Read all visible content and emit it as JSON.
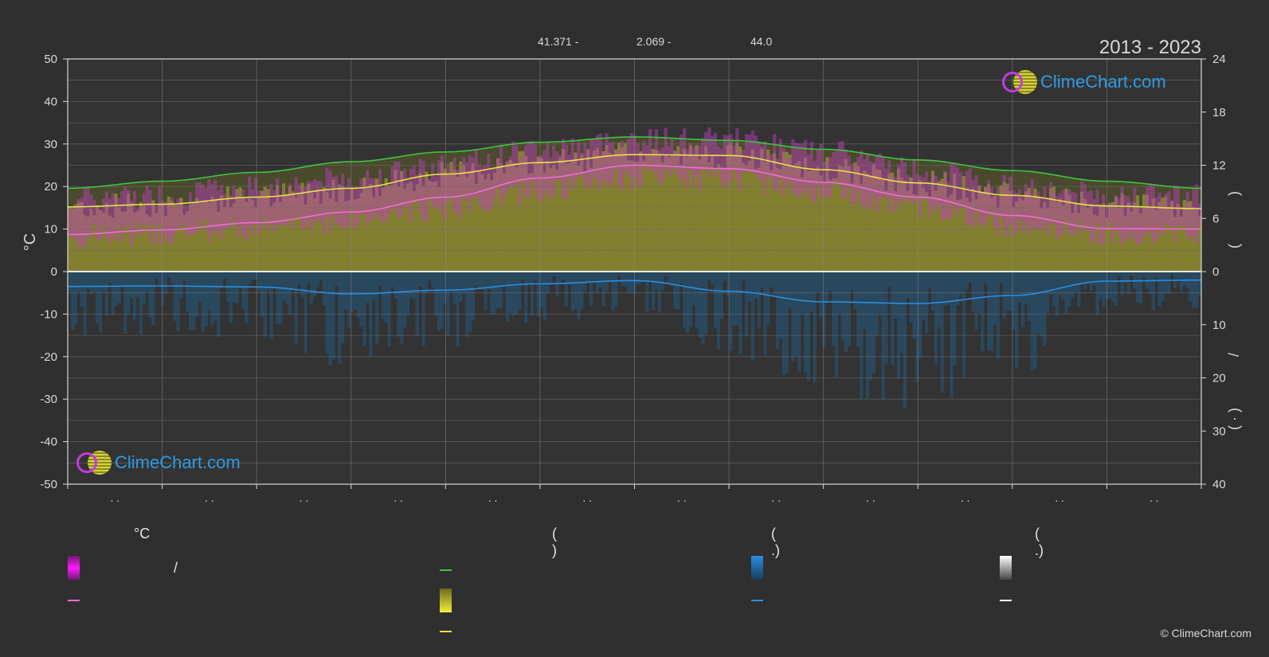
{
  "header": {
    "period": "2013 - 2023",
    "top_values": [
      "41.371 -",
      "2.069 -",
      "44.0"
    ]
  },
  "logo": {
    "text": "ClimeChart.com"
  },
  "copyright": "© ClimeChart.com",
  "chart_data": {
    "type": "line",
    "y_left": {
      "label": "°C",
      "range": [
        -50,
        50
      ],
      "ticks": [
        "50",
        "40",
        "30",
        "20",
        "10",
        "0",
        "-10",
        "-20",
        "-30",
        "-40",
        "-50"
      ]
    },
    "y_right_upper": {
      "range": [
        0,
        24
      ],
      "ticks": [
        "24",
        "18",
        "12",
        "6",
        "0"
      ],
      "label_fragments": [
        "(",
        ")"
      ]
    },
    "y_right_lower": {
      "range": [
        0,
        40
      ],
      "ticks": [
        "10",
        "20",
        "30",
        "40"
      ],
      "label_fragments": [
        "/",
        "( · )"
      ]
    },
    "x_tick_labels": [
      ". .",
      ". .",
      ". .",
      ". .",
      ". .",
      ". .",
      ". .",
      ". .",
      ". .",
      ". .",
      ". .",
      ". ."
    ],
    "grid": true,
    "series": [
      {
        "key": "daylight",
        "color": "#3ec43e",
        "axis": "right_upper",
        "points": [
          [
            0,
            9.4
          ],
          [
            1,
            10.2
          ],
          [
            2,
            11.2
          ],
          [
            3,
            12.4
          ],
          [
            4,
            13.5
          ],
          [
            5,
            14.6
          ],
          [
            6,
            15.2
          ],
          [
            7,
            14.8
          ],
          [
            8,
            13.8
          ],
          [
            9,
            12.6
          ],
          [
            10,
            11.4
          ],
          [
            11,
            10.2
          ],
          [
            12,
            9.4
          ]
        ]
      },
      {
        "key": "sunshine",
        "color": "#e6e04a",
        "axis": "right_upper",
        "points": [
          [
            0,
            7.3
          ],
          [
            1,
            7.6
          ],
          [
            2,
            8.4
          ],
          [
            3,
            9.4
          ],
          [
            4,
            11.0
          ],
          [
            5,
            12.3
          ],
          [
            6,
            13.2
          ],
          [
            7,
            13.1
          ],
          [
            8,
            11.5
          ],
          [
            9,
            10.0
          ],
          [
            10,
            8.6
          ],
          [
            11,
            7.4
          ],
          [
            12,
            7.1
          ]
        ]
      },
      {
        "key": "temp_mean",
        "color": "#f06bd9",
        "axis": "left",
        "points": [
          [
            0,
            8.7
          ],
          [
            1,
            9.8
          ],
          [
            2,
            11.5
          ],
          [
            3,
            14.0
          ],
          [
            4,
            17.5
          ],
          [
            5,
            22.0
          ],
          [
            6,
            25.0
          ],
          [
            7,
            24.2
          ],
          [
            8,
            21.0
          ],
          [
            9,
            17.5
          ],
          [
            10,
            13.2
          ],
          [
            11,
            10.1
          ],
          [
            12,
            10.0
          ]
        ]
      },
      {
        "key": "precip_mean",
        "color": "#2a8ee0",
        "axis": "right_lower",
        "points": [
          [
            0,
            2.8
          ],
          [
            1,
            2.7
          ],
          [
            2,
            2.9
          ],
          [
            3,
            4.2
          ],
          [
            4,
            3.5
          ],
          [
            5,
            2.3
          ],
          [
            6,
            1.7
          ],
          [
            7,
            3.7
          ],
          [
            8,
            5.7
          ],
          [
            9,
            6.0
          ],
          [
            10,
            4.5
          ],
          [
            11,
            1.8
          ],
          [
            12,
            1.6
          ]
        ]
      }
    ],
    "ranges": [
      {
        "key": "temp_range",
        "color": "#d41ed4",
        "low": [
          8,
          9,
          10,
          12,
          15,
          19,
          22,
          22,
          19,
          15,
          11,
          9,
          9
        ],
        "high": [
          17,
          18,
          20,
          22,
          25,
          29,
          31,
          31,
          28,
          24,
          20,
          18,
          18
        ]
      }
    ]
  },
  "legend": {
    "col1": {
      "title": "°C",
      "row1_text": "/"
    },
    "col2": {
      "title": "(            )"
    },
    "col3": {
      "title": "(   .)"
    },
    "col4": {
      "title": "(   .)"
    }
  }
}
